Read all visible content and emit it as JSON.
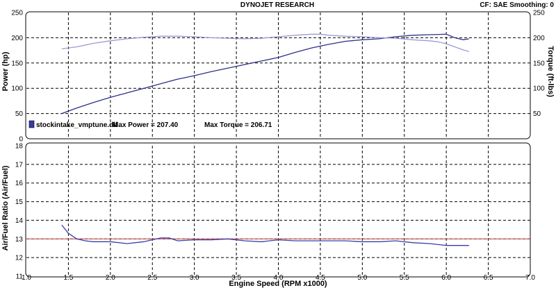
{
  "header": {
    "title": "DYNOJET RESEARCH",
    "settings": "CF: SAE  Smoothing: 0"
  },
  "legend": {
    "file": "stockintake_vmptune.dlf",
    "max_power": "Max Power = 207.40",
    "max_torque": "Max Torque = 206.71"
  },
  "colors": {
    "background": "#ffffff",
    "grid": "#000000",
    "power": "#2d2d8c",
    "torque": "#9a9ad2",
    "afr": "#3a3aa8",
    "afr_target": "#c84848"
  },
  "chart_data": [
    {
      "type": "line",
      "title": "DYNOJET RESEARCH",
      "xlabel": "Engine Speed (RPM x1000)",
      "ylabel": "Power (hp)",
      "y2label": "Torque (ft-lbs)",
      "xlim": [
        1.0,
        7.0
      ],
      "ylim": [
        0,
        250
      ],
      "y2lim": [
        0,
        250
      ],
      "x_ticks": [
        1.0,
        1.5,
        2.0,
        2.5,
        3.0,
        3.5,
        4.0,
        4.5,
        5.0,
        5.5,
        6.0,
        6.5,
        7.0
      ],
      "y_ticks": [
        0,
        50,
        100,
        150,
        200,
        250
      ],
      "y2_ticks": [
        50,
        100,
        150,
        200,
        250
      ],
      "grid": true,
      "series": [
        {
          "name": "stockintake_vmptune.dlf",
          "role": "power",
          "x": [
            1.42,
            1.6,
            1.8,
            2.0,
            2.2,
            2.4,
            2.6,
            2.8,
            3.0,
            3.2,
            3.4,
            3.6,
            3.8,
            4.0,
            4.2,
            4.4,
            4.6,
            4.8,
            5.0,
            5.2,
            5.4,
            5.6,
            5.8,
            6.0,
            6.1,
            6.2,
            6.27
          ],
          "y": [
            50,
            61,
            72,
            82,
            91,
            100,
            109,
            118,
            125,
            133,
            140,
            147,
            154,
            161,
            171,
            180,
            187,
            193,
            196,
            198,
            202,
            205,
            206,
            207,
            200,
            196,
            198
          ]
        },
        {
          "name": "stockintake_vmptune.dlf",
          "role": "torque",
          "x": [
            1.42,
            1.6,
            1.8,
            2.0,
            2.2,
            2.4,
            2.6,
            2.8,
            3.0,
            3.2,
            3.4,
            3.6,
            3.8,
            4.0,
            4.2,
            4.4,
            4.5,
            4.6,
            4.8,
            5.0,
            5.2,
            5.4,
            5.6,
            5.8,
            5.9,
            6.0,
            6.1,
            6.2,
            6.27
          ],
          "y": [
            178,
            182,
            189,
            194,
            198,
            201,
            203,
            203,
            202,
            200,
            199,
            198,
            199,
            202,
            205,
            207,
            207,
            205,
            203,
            202,
            200,
            199,
            196,
            194,
            192,
            188,
            182,
            176,
            173
          ]
        }
      ]
    },
    {
      "type": "line",
      "xlabel": "Engine Speed (RPM x1000)",
      "ylabel": "Air/Fuel Ratio (Air/Fuel)",
      "xlim": [
        1.0,
        7.0
      ],
      "ylim": [
        11,
        18
      ],
      "x_ticks": [
        1.0,
        1.5,
        2.0,
        2.5,
        3.0,
        3.5,
        4.0,
        4.5,
        5.0,
        5.5,
        6.0,
        6.5,
        7.0
      ],
      "y_ticks": [
        11,
        12,
        13,
        14,
        15,
        16,
        17,
        18
      ],
      "grid": true,
      "reference_line": 13.0,
      "series": [
        {
          "name": "stockintake_vmptune.dlf",
          "role": "afr",
          "x": [
            1.42,
            1.5,
            1.6,
            1.7,
            1.8,
            2.0,
            2.2,
            2.4,
            2.6,
            2.7,
            2.8,
            3.0,
            3.2,
            3.4,
            3.6,
            3.8,
            4.0,
            4.2,
            4.4,
            4.6,
            4.8,
            5.0,
            5.2,
            5.4,
            5.6,
            5.8,
            6.0,
            6.2,
            6.27
          ],
          "y": [
            13.75,
            13.3,
            13.0,
            12.9,
            12.85,
            12.85,
            12.75,
            12.85,
            13.05,
            13.05,
            12.9,
            12.95,
            12.95,
            13.0,
            12.9,
            12.85,
            12.95,
            12.9,
            12.9,
            12.9,
            12.9,
            12.85,
            12.85,
            12.9,
            12.8,
            12.75,
            12.65,
            12.65,
            12.65
          ]
        }
      ]
    }
  ]
}
